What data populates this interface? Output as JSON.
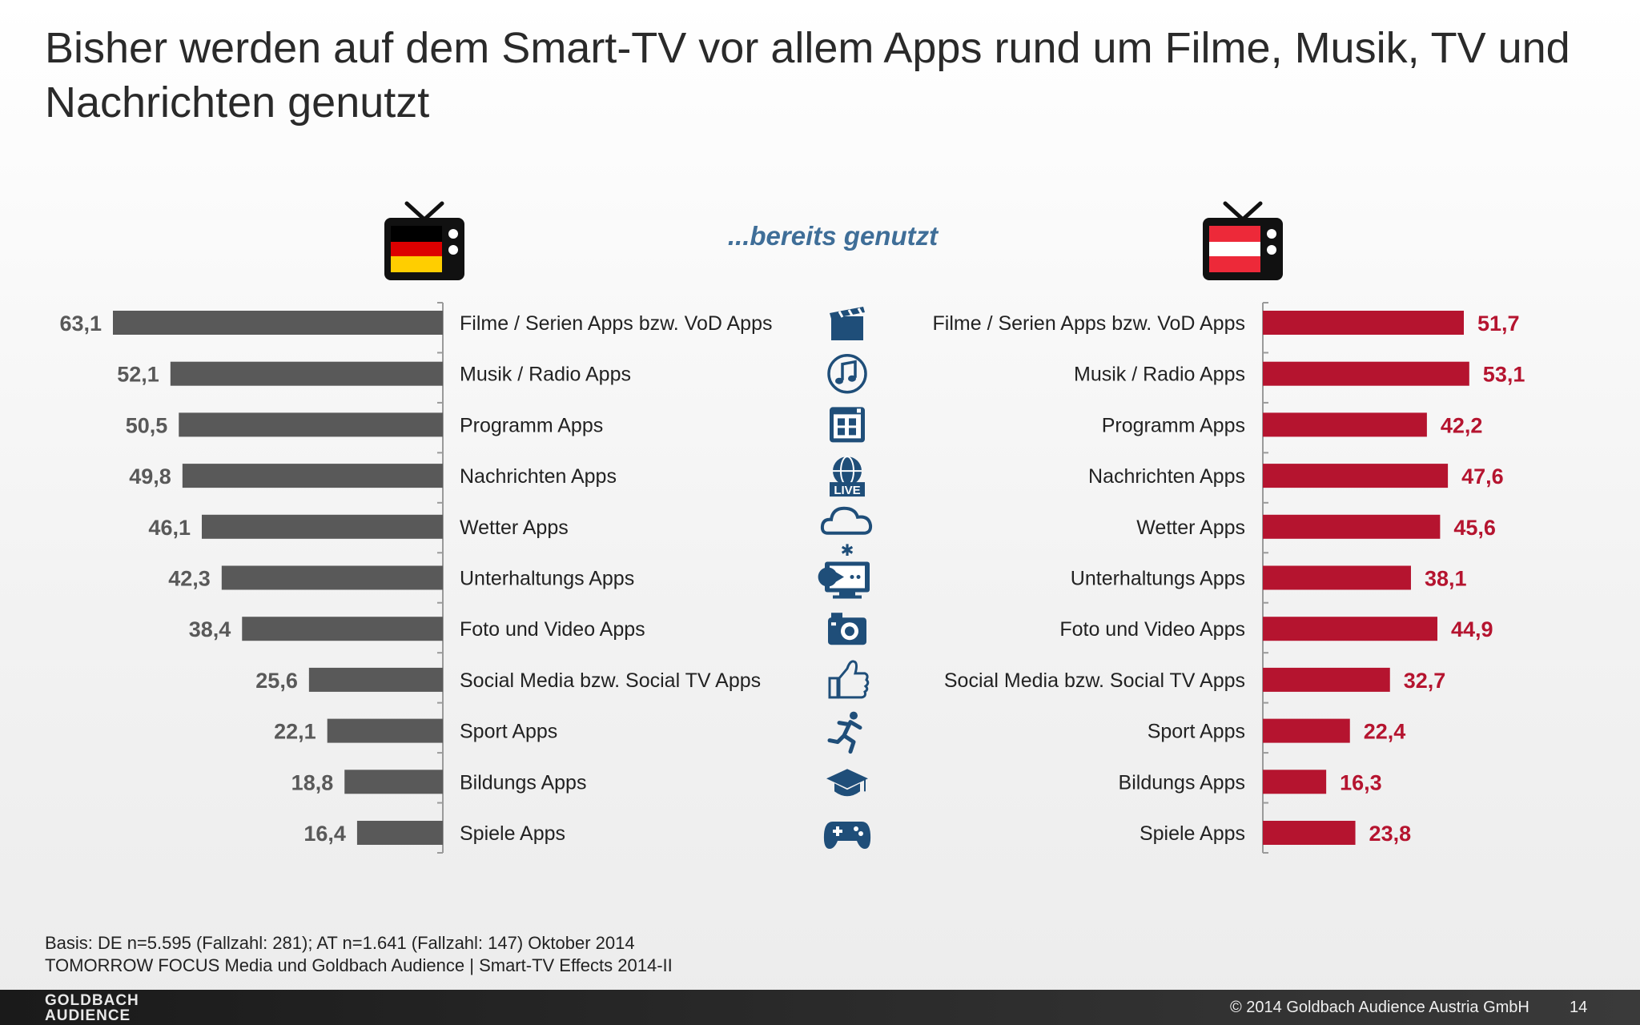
{
  "title": "Bisher werden auf dem Smart-TV vor allem Apps rund um Filme, Musik, TV und Nachrichten genutzt",
  "subtitle": "...bereits genutzt",
  "colors": {
    "de_bar": "#595959",
    "de_value": "#595959",
    "at_bar": "#b5142f",
    "at_value": "#b5142f",
    "icon": "#1f4e79",
    "subtitle": "#3f6e98"
  },
  "chart_data": {
    "type": "bar",
    "orientation": "horizontal-butterfly",
    "categories": [
      "Filme / Serien Apps bzw. VoD Apps",
      "Musik / Radio Apps",
      "Programm Apps",
      "Nachrichten Apps",
      "Wetter Apps",
      "Unterhaltungs Apps",
      "Foto und Video Apps",
      "Social Media bzw. Social TV Apps",
      "Sport Apps",
      "Bildungs Apps",
      "Spiele Apps"
    ],
    "series": [
      {
        "values": [
          63.1,
          52.1,
          50.5,
          49.8,
          46.1,
          42.3,
          38.4,
          25.6,
          22.1,
          18.8,
          16.4
        ],
        "labels": [
          "63,1",
          "52,1",
          "50,5",
          "49,8",
          "46,1",
          "42,3",
          "38,4",
          "25,6",
          "22,1",
          "18,8",
          "16,4"
        ]
      },
      {
        "values": [
          51.7,
          53.1,
          42.2,
          47.6,
          45.6,
          38.1,
          44.9,
          32.7,
          22.4,
          16.3,
          23.8
        ],
        "labels": [
          "51,7",
          "53,1",
          "42,2",
          "47,6",
          "45,6",
          "38,1",
          "44,9",
          "32,7",
          "22,4",
          "16,3",
          "23,8"
        ]
      }
    ],
    "icons": [
      "clapperboard-icon",
      "music-note-icon",
      "program-grid-icon",
      "globe-live-icon",
      "cloud-weather-icon",
      "arcade-screen-icon",
      "camera-icon",
      "thumbs-up-icon",
      "runner-icon",
      "graduation-cap-icon",
      "gamepad-icon"
    ],
    "icon_texts": {
      "live": "LIVE"
    },
    "xlim": [
      0,
      70
    ],
    "grid": false,
    "legend": "none"
  },
  "footnote": {
    "line1": "Basis: DE n=5.595 (Fallzahl: 281); AT n=1.641 (Fallzahl: 147) Oktober 2014",
    "line2": "TOMORROW FOCUS Media und Goldbach Audience | Smart-TV Effects 2014-II"
  },
  "footer": {
    "logo_line1": "GOLDBACH",
    "logo_line2": "AUDIENCE",
    "copyright": "© 2014 Goldbach Audience Austria GmbH",
    "page_number": "14"
  }
}
